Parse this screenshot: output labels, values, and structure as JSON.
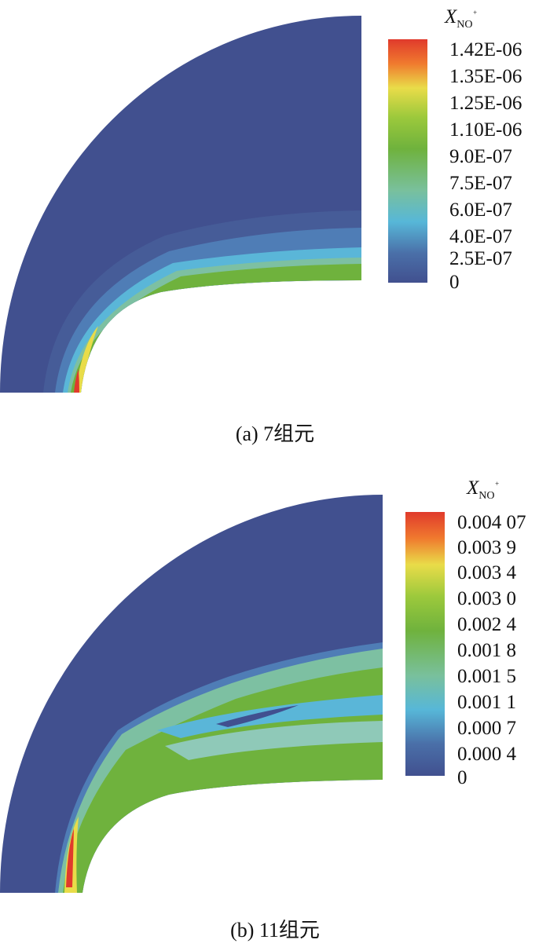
{
  "figures": [
    {
      "caption": "(a) 7组元",
      "colorbar_title": "X",
      "colorbar_title_sub": "NO",
      "colorbar_title_sup": "+",
      "tick_labels": [
        "1.42E-06",
        "1.35E-06",
        "1.25E-06",
        "1.10E-06",
        "9.0E-07",
        "7.5E-07",
        "6.0E-07",
        "4.0E-07",
        "2.5E-07",
        "0"
      ]
    },
    {
      "caption": "(b) 11组元",
      "colorbar_title": "X",
      "colorbar_title_sub": "NO",
      "colorbar_title_sup": "+",
      "tick_labels": [
        "0.004 07",
        "0.003 9",
        "0.003 4",
        "0.003 0",
        "0.002 4",
        "0.001 8",
        "0.001 5",
        "0.001 1",
        "0.000 7",
        "0.000 4",
        "0"
      ]
    }
  ],
  "chart_data": [
    {
      "type": "heatmap",
      "title": "(a) 7组元",
      "variable": "X_NO+",
      "colorbar_levels": [
        "1.42E-06",
        "1.35E-06",
        "1.25E-06",
        "1.10E-06",
        "9.0E-07",
        "7.5E-07",
        "6.0E-07",
        "4.0E-07",
        "2.5E-07",
        "0"
      ],
      "colorbar_range": [
        0,
        1.42e-06
      ],
      "colors": [
        "#e03a2c",
        "#f0812c",
        "#e9dc49",
        "#6fb23d",
        "#7dc0a2",
        "#5ab6d8",
        "#41508f"
      ]
    },
    {
      "type": "heatmap",
      "title": "(b) 11组元",
      "variable": "X_NO+",
      "colorbar_levels": [
        "0.004 07",
        "0.003 9",
        "0.003 4",
        "0.003 0",
        "0.002 4",
        "0.001 8",
        "0.001 5",
        "0.001 1",
        "0.000 7",
        "0.000 4",
        "0"
      ],
      "colorbar_range": [
        0,
        0.00407
      ],
      "colors": [
        "#e03a2c",
        "#f0812c",
        "#e9dc49",
        "#6fb23d",
        "#7dc0a2",
        "#5ab6d8",
        "#41508f"
      ]
    }
  ]
}
